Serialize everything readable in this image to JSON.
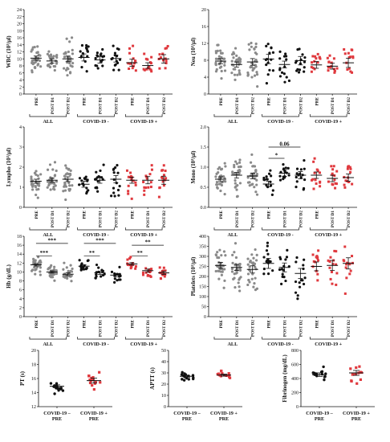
{
  "colors": {
    "black": "#111111",
    "grey": "#8a8a8a",
    "red": "#e0393e"
  },
  "chart_data": [
    {
      "type": "scatter",
      "id": "wbc",
      "ylabel": "WBC (10³/µl)",
      "ylim": [
        0,
        24
      ],
      "yticks": [
        0,
        2,
        4,
        6,
        8,
        10,
        12,
        14,
        16,
        18,
        20,
        22,
        24
      ],
      "categories": [
        "PRE",
        "POST D1",
        "POST D2",
        "PRE",
        "POST D1",
        "POST D2",
        "PRE",
        "POST D1",
        "POST D2"
      ],
      "groups": [
        "ALL",
        "COVID-19 -",
        "COVID-19 +"
      ],
      "means": [
        10.2,
        9.4,
        10.0,
        10.4,
        9.7,
        10.1,
        8.9,
        8.1,
        10.0
      ],
      "sem": [
        0.6,
        0.6,
        0.8,
        1.0,
        0.9,
        1.0,
        1.0,
        0.8,
        1.2
      ],
      "sig": []
    },
    {
      "type": "scatter",
      "id": "neu",
      "ylabel": "Neu (10³/µl)",
      "ylim": [
        0,
        20
      ],
      "yticks": [
        0,
        4,
        8,
        12,
        16,
        20
      ],
      "categories": [
        "PRE",
        "POST D1",
        "POST D2",
        "PRE",
        "POST D1",
        "POST D2",
        "PRE",
        "POST D1",
        "POST D2"
      ],
      "groups": [
        "ALL",
        "COVID-19 -",
        "COVID-19 +"
      ],
      "means": [
        7.8,
        7.0,
        7.6,
        8.3,
        7.0,
        7.9,
        6.9,
        6.6,
        7.4
      ],
      "sem": [
        0.6,
        0.6,
        0.8,
        1.1,
        0.8,
        1.0,
        0.8,
        0.7,
        1.1
      ],
      "sig": []
    },
    {
      "type": "scatter",
      "id": "lympho",
      "ylabel": "Lympho (10³/µl)",
      "ylim": [
        0,
        4
      ],
      "yticks": [
        0,
        1,
        2,
        3,
        4
      ],
      "categories": [
        "PRE",
        "POST D1",
        "POST D2",
        "PRE",
        "POST D1",
        "POST D2",
        "PRE",
        "POST D1",
        "POST D2"
      ],
      "groups": [
        "ALL",
        "COVID-19 -",
        "COVID-19 +"
      ],
      "means": [
        1.3,
        1.35,
        1.4,
        1.15,
        1.35,
        1.4,
        1.35,
        1.35,
        1.35
      ],
      "sem": [
        0.1,
        0.1,
        0.12,
        0.15,
        0.15,
        0.18,
        0.15,
        0.18,
        0.2
      ],
      "sig": []
    },
    {
      "type": "scatter",
      "id": "mono",
      "ylabel": "Mono (10³/µl)",
      "ylim": [
        0,
        2
      ],
      "yticks": [
        0.0,
        0.5,
        1.0,
        1.5,
        2.0
      ],
      "categories": [
        "PRE",
        "POST D1",
        "POST D2",
        "PRE",
        "POST D1",
        "POST D2",
        "PRE",
        "POST D1",
        "POST D2"
      ],
      "groups": [
        "ALL",
        "COVID-19 -",
        "COVID-19 +"
      ],
      "means": [
        0.7,
        0.8,
        0.78,
        0.58,
        0.85,
        0.8,
        0.8,
        0.72,
        0.74
      ],
      "sem": [
        0.06,
        0.07,
        0.07,
        0.07,
        0.08,
        0.09,
        0.08,
        0.08,
        0.09
      ],
      "sig": [
        {
          "from": 3,
          "to": 4,
          "label": "*",
          "level": 1.22
        },
        {
          "from": 3,
          "to": 5,
          "label": "0.06",
          "level": 1.5
        }
      ]
    },
    {
      "type": "scatter",
      "id": "hb",
      "ylabel": "Hb (g/dL)",
      "ylim": [
        0,
        18
      ],
      "yticks": [
        0,
        2,
        4,
        6,
        8,
        10,
        12,
        14,
        16,
        18
      ],
      "categories": [
        "PRE",
        "POST D1",
        "POST D2",
        "PRE",
        "POST D1",
        "POST D2",
        "PRE",
        "POST D1",
        "POST D2"
      ],
      "groups": [
        "ALL",
        "COVID-19 -",
        "COVID-19 +"
      ],
      "means": [
        11.6,
        10.0,
        9.5,
        11.3,
        9.8,
        9.3,
        11.8,
        10.3,
        9.8
      ],
      "sem": [
        0.25,
        0.25,
        0.3,
        0.3,
        0.35,
        0.35,
        0.3,
        0.35,
        0.35
      ],
      "sig": [
        {
          "from": 0,
          "to": 1,
          "label": "***",
          "level": 13.6
        },
        {
          "from": 0,
          "to": 2,
          "label": "***",
          "level": 16.4
        },
        {
          "from": 3,
          "to": 4,
          "label": "**",
          "level": 13.6
        },
        {
          "from": 3,
          "to": 5,
          "label": "***",
          "level": 16.4
        },
        {
          "from": 6,
          "to": 7,
          "label": "**",
          "level": 13.6
        },
        {
          "from": 6,
          "to": 8,
          "label": "**",
          "level": 16.0
        }
      ]
    },
    {
      "type": "scatter",
      "id": "plt",
      "ylabel": "Platelets (10³/µl)",
      "ylim": [
        0,
        400
      ],
      "yticks": [
        0,
        50,
        100,
        150,
        200,
        250,
        300,
        350,
        400
      ],
      "categories": [
        "PRE",
        "POST D1",
        "POST D2",
        "PRE",
        "POST D1",
        "POST D2",
        "PRE",
        "POST D1",
        "POST D2"
      ],
      "groups": [
        "ALL",
        "COVID-19 -",
        "COVID-19 +"
      ],
      "means": [
        255,
        245,
        235,
        265,
        245,
        215,
        250,
        255,
        265
      ],
      "sem": [
        15,
        15,
        18,
        25,
        22,
        25,
        22,
        25,
        28
      ],
      "sig": []
    },
    {
      "type": "scatter",
      "id": "pt",
      "ylabel": "PT (s)",
      "ylim": [
        12,
        20
      ],
      "yticks": [
        12,
        14,
        16,
        18,
        20
      ],
      "categories": [
        "COVID-19 – PRE",
        "COVID-19 + PRE"
      ],
      "means": [
        14.9,
        15.7
      ],
      "sem": [
        0.2,
        0.35
      ]
    },
    {
      "type": "scatter",
      "id": "aptt",
      "ylabel": "APTT (s)",
      "ylim": [
        0,
        50
      ],
      "yticks": [
        0,
        10,
        20,
        30,
        40,
        50
      ],
      "categories": [
        "COVID-19 – PRE",
        "COVID-19 + PRE"
      ],
      "means": [
        27,
        28
      ],
      "sem": [
        0.8,
        0.9
      ]
    },
    {
      "type": "scatter",
      "id": "fib",
      "ylabel": "Fibrinogen (mg/dL)",
      "ylim": [
        0,
        800
      ],
      "yticks": [
        0,
        200,
        400,
        600,
        800
      ],
      "categories": [
        "COVID-19 – PRE",
        "COVID-19 + PRE"
      ],
      "means": [
        455,
        480
      ],
      "sem": [
        25,
        35
      ]
    }
  ]
}
